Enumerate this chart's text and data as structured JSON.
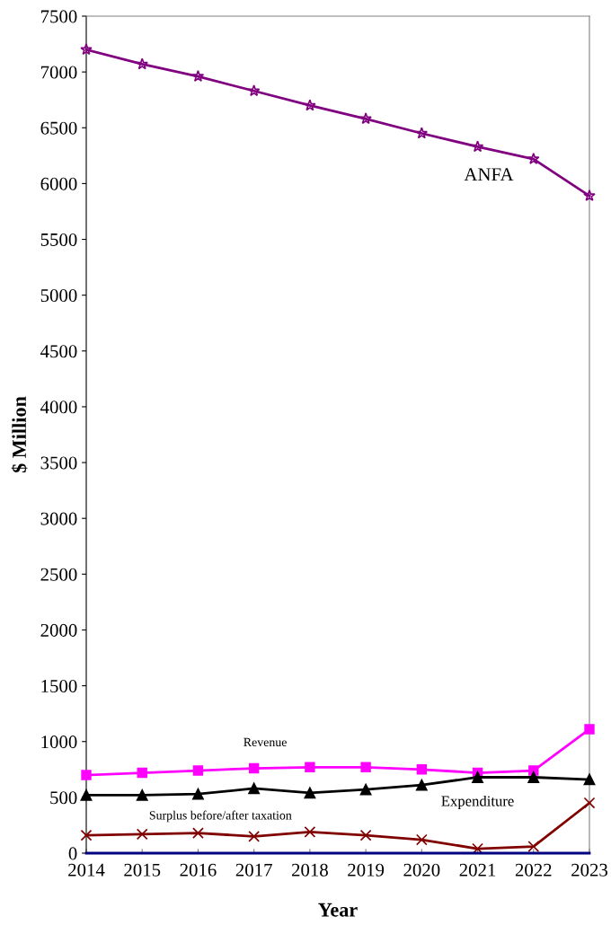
{
  "chart_data": {
    "type": "line",
    "xlabel": "Year",
    "ylabel": "$ Million",
    "x": [
      2014,
      2015,
      2016,
      2017,
      2018,
      2019,
      2020,
      2021,
      2022,
      2023
    ],
    "series": [
      {
        "name": "ANFA",
        "color": "#800080",
        "marker": "star",
        "values": [
          7200,
          7070,
          6960,
          6830,
          6700,
          6580,
          6450,
          6330,
          6220,
          5890
        ]
      },
      {
        "name": "Revenue",
        "color": "#ff00ff",
        "marker": "square",
        "values": [
          700,
          720,
          740,
          760,
          770,
          770,
          750,
          720,
          740,
          1110
        ]
      },
      {
        "name": "Expenditure",
        "color": "#000000",
        "marker": "triangle",
        "values": [
          520,
          520,
          530,
          580,
          540,
          570,
          610,
          680,
          680,
          660
        ]
      },
      {
        "name": "Surplus before/after taxation",
        "color": "#800000",
        "marker": "cross",
        "values": [
          160,
          170,
          180,
          150,
          190,
          160,
          120,
          40,
          60,
          450
        ]
      },
      {
        "color": "#000080",
        "marker": "none",
        "values": [
          0,
          0,
          0,
          0,
          0,
          0,
          0,
          0,
          0,
          0
        ]
      }
    ],
    "xlim": [
      2014,
      2023
    ],
    "xticks": [
      2014,
      2015,
      2016,
      2017,
      2018,
      2019,
      2020,
      2021,
      2022,
      2023
    ],
    "ylim": [
      0,
      7500
    ],
    "yticks": [
      0,
      500,
      1000,
      1500,
      2000,
      2500,
      3000,
      3500,
      4000,
      4500,
      5000,
      5500,
      6000,
      6500,
      7000,
      7500
    ],
    "grid": false,
    "legend": false
  }
}
